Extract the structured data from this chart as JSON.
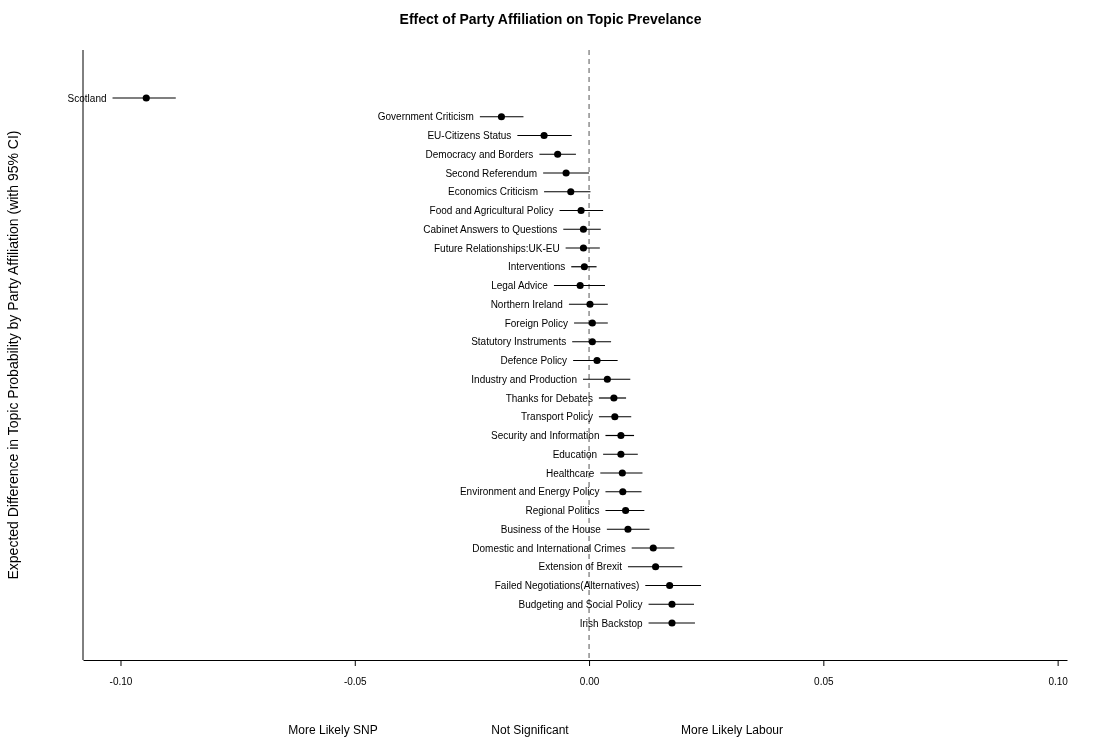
{
  "chart_data": {
    "type": "scatter",
    "orientation": "horizontal",
    "title": "Effect of Party Affiliation on Topic Prevelance",
    "ylabel": "Expected Difference in Topic Probability by Party Affiliation (with 95% CI)",
    "categories": [
      "Scotland",
      "Government Criticism",
      "EU-Citizens Status",
      "Democracy and Borders",
      "Second Referendum",
      "Economics Criticism",
      "Food and Agricultural Policy",
      "Cabinet Answers to Questions",
      "Future Relationships:UK-EU",
      "Interventions",
      "Legal Advice",
      "Northern Ireland",
      "Foreign Policy",
      "Statutory Instruments",
      "Defence Policy",
      "Industry and Production",
      "Thanks for Debates",
      "Transport Policy",
      "Security and Information",
      "Education",
      "Healthcare",
      "Environment and Energy Policy",
      "Regional Politics",
      "Business of the House",
      "Domestic and International Crimes",
      "Extension of Brexit",
      "Failed Negotiations(Alternatives)",
      "Budgeting and Social Policy",
      "Irish Backstop"
    ],
    "series": [
      {
        "color": "#000000",
        "values": [
          -0.0945,
          -0.0187,
          -0.0096,
          -0.0067,
          -0.0049,
          -0.0039,
          -0.0017,
          -0.0012,
          -0.0012,
          -0.001,
          -0.0019,
          0.0002,
          0.0007,
          0.0007,
          0.0017,
          0.0039,
          0.0053,
          0.0055,
          0.0068,
          0.0068,
          0.0071,
          0.0072,
          0.0078,
          0.0083,
          0.0137,
          0.0142,
          0.0172,
          0.0177,
          0.0177
        ],
        "errors": [
          [
            -0.1017,
            -0.0882
          ],
          [
            -0.0233,
            -0.014
          ],
          [
            -0.0153,
            -0.0037
          ],
          [
            -0.0106,
            -0.0028
          ],
          [
            -0.0098,
            0.0
          ],
          [
            -0.0096,
            0.0003
          ],
          [
            -0.0063,
            0.003
          ],
          [
            -0.0055,
            0.0025
          ],
          [
            -0.005,
            0.0023
          ],
          [
            -0.0038,
            0.0016
          ],
          [
            -0.0075,
            0.0034
          ],
          [
            -0.0043,
            0.004
          ],
          [
            -0.0032,
            0.004
          ],
          [
            -0.0036,
            0.0047
          ],
          [
            -0.0034,
            0.0061
          ],
          [
            -0.0013,
            0.0088
          ],
          [
            0.0021,
            0.0079
          ],
          [
            0.0021,
            0.009
          ],
          [
            0.0035,
            0.0096
          ],
          [
            0.003,
            0.0104
          ],
          [
            0.0024,
            0.0114
          ],
          [
            0.0035,
            0.0112
          ],
          [
            0.0035,
            0.0118
          ],
          [
            0.0038,
            0.0129
          ],
          [
            0.0091,
            0.0182
          ],
          [
            0.0083,
            0.0199
          ],
          [
            0.012,
            0.0239
          ],
          [
            0.0127,
            0.0224
          ],
          [
            0.0127,
            0.0226
          ]
        ]
      }
    ],
    "xlim": [
      -0.108,
      0.102
    ],
    "xticks": [
      {
        "value": -0.1,
        "label": "-0.10"
      },
      {
        "value": -0.05,
        "label": "-0.05"
      },
      {
        "value": 0,
        "label": "0.00"
      },
      {
        "value": 0.05,
        "label": "0.05"
      },
      {
        "value": 0.1,
        "label": "0.10"
      }
    ],
    "marker": "circle",
    "grid": false,
    "ref_lines": [
      {
        "axis": "x",
        "value": 0,
        "line_style": "dashed",
        "color": "#555555"
      }
    ],
    "annotations": [
      "More Likely SNP",
      "Not Significant",
      "More Likely Labour"
    ]
  }
}
